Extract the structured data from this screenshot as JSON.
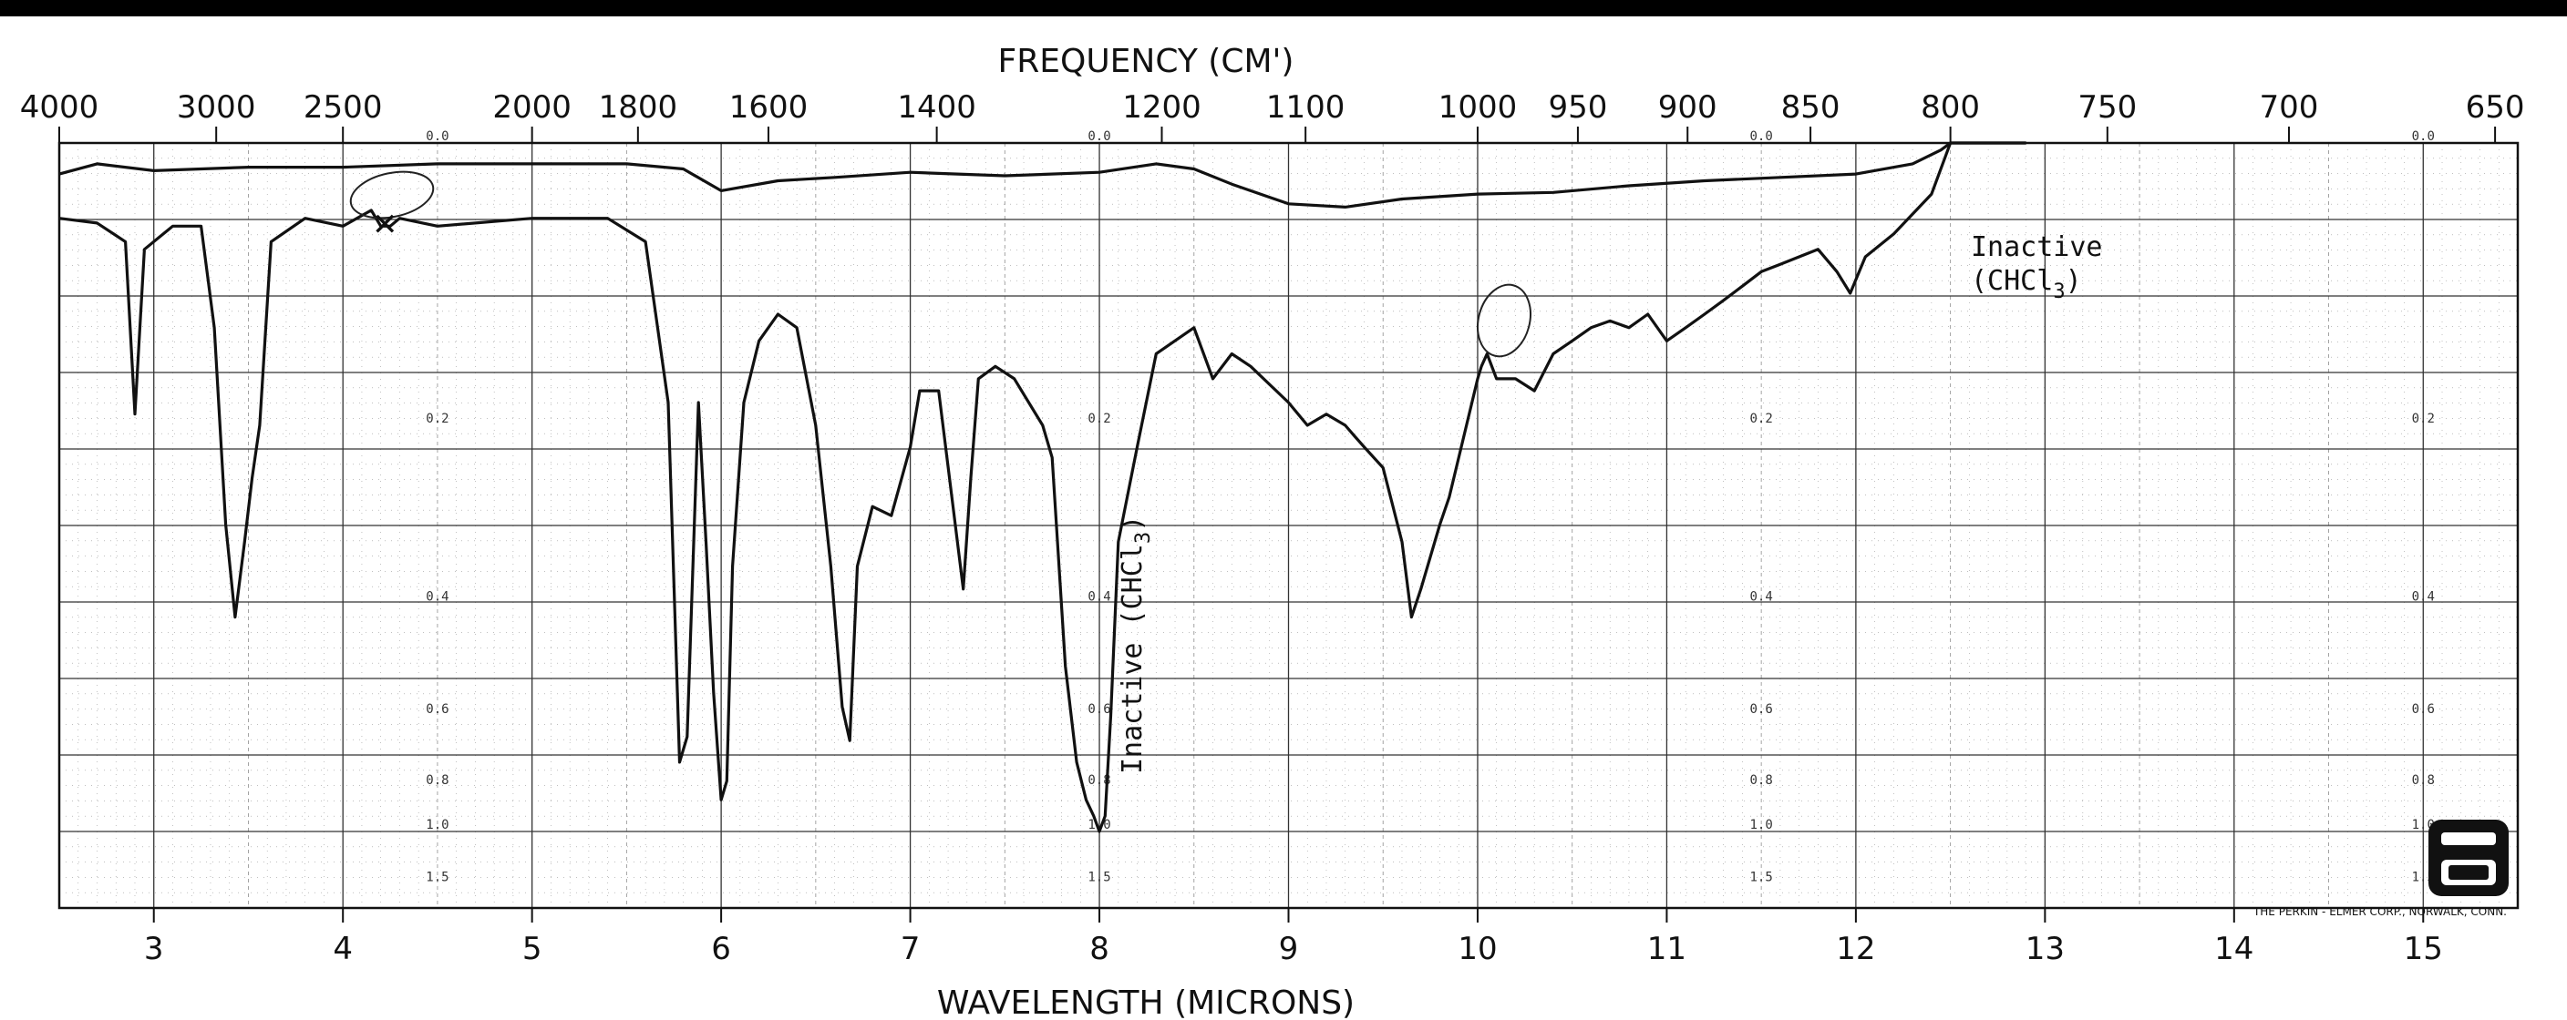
{
  "colors": {
    "ink": "#111111",
    "grid_major": "#333333",
    "grid_minor": "#9a9a9a",
    "paper": "#ffffff"
  },
  "chart_data": {
    "type": "line",
    "title": "",
    "x_top_label": "FREQUENCY (CM')",
    "xlabel": "WAVELENGTH (MICRONS)",
    "xlim": [
      2.5,
      15.5
    ],
    "x_ticks": [
      "3",
      "4",
      "5",
      "6",
      "7",
      "8",
      "9",
      "10",
      "11",
      "12",
      "13",
      "14",
      "15"
    ],
    "freq_ticks": [
      {
        "label": "4000",
        "wavelength": 2.5
      },
      {
        "label": "3000",
        "wavelength": 3.33
      },
      {
        "label": "2500",
        "wavelength": 4.0
      },
      {
        "label": "2000",
        "wavelength": 5.0
      },
      {
        "label": "1800",
        "wavelength": 5.56
      },
      {
        "label": "1600",
        "wavelength": 6.25
      },
      {
        "label": "1400",
        "wavelength": 7.14
      },
      {
        "label": "1200",
        "wavelength": 8.33
      },
      {
        "label": "1100",
        "wavelength": 9.09
      },
      {
        "label": "1000",
        "wavelength": 10.0
      },
      {
        "label": "950",
        "wavelength": 10.53
      },
      {
        "label": "900",
        "wavelength": 11.11
      },
      {
        "label": "850",
        "wavelength": 11.76
      },
      {
        "label": "800",
        "wavelength": 12.5
      },
      {
        "label": "750",
        "wavelength": 13.33
      },
      {
        "label": "700",
        "wavelength": 14.29
      },
      {
        "label": "650",
        "wavelength": 15.38
      }
    ],
    "absorbance_labels": [
      "0.0",
      "0.2",
      "0.4",
      "0.6",
      "0.8",
      "1.0",
      "1.5"
    ],
    "absorbance_label_columns": [
      4.5,
      8.0,
      11.5,
      15.0
    ],
    "grid": true,
    "series": [
      {
        "x": [
          2.5,
          2.7,
          2.85,
          2.9,
          2.95,
          3.1,
          3.25,
          3.32,
          3.38,
          3.43,
          3.48,
          3.52,
          3.56,
          3.62,
          3.8,
          4.0,
          4.15,
          4.2,
          4.25,
          4.3,
          4.5,
          5.0,
          5.4,
          5.6,
          5.72,
          5.78,
          5.82,
          5.88,
          5.92,
          5.96,
          6.0,
          6.03,
          6.06,
          6.12,
          6.2,
          6.3,
          6.4,
          6.5,
          6.58,
          6.64,
          6.68,
          6.72,
          6.8,
          6.9,
          7.0,
          7.05,
          7.15,
          7.22,
          7.28,
          7.32,
          7.36,
          7.45,
          7.55,
          7.7,
          7.75,
          7.82,
          7.88,
          7.93,
          7.97,
          8.0,
          8.03,
          8.06,
          8.1,
          8.2,
          8.3,
          8.5,
          8.6,
          8.7,
          8.8,
          9.0,
          9.1,
          9.2,
          9.3,
          9.35,
          9.4,
          9.5,
          9.6,
          9.65,
          9.7,
          9.8,
          9.85,
          10.0,
          10.02,
          10.05,
          10.1,
          10.2,
          10.3,
          10.4,
          10.5,
          10.6,
          10.7,
          10.8,
          10.9,
          11.0,
          11.1,
          11.2,
          11.3,
          11.4,
          11.5,
          11.6,
          11.7,
          11.8,
          11.9,
          11.97,
          12.05,
          12.2,
          12.4,
          12.5,
          12.9
        ],
        "y": [
          0.045,
          0.048,
          0.06,
          0.19,
          0.065,
          0.05,
          0.05,
          0.12,
          0.3,
          0.42,
          0.32,
          0.25,
          0.2,
          0.06,
          0.045,
          0.05,
          0.04,
          0.05,
          0.05,
          0.045,
          0.05,
          0.045,
          0.045,
          0.06,
          0.18,
          0.72,
          0.65,
          0.18,
          0.32,
          0.55,
          0.85,
          0.78,
          0.35,
          0.18,
          0.13,
          0.11,
          0.12,
          0.2,
          0.35,
          0.58,
          0.66,
          0.35,
          0.28,
          0.29,
          0.22,
          0.17,
          0.17,
          0.27,
          0.38,
          0.25,
          0.16,
          0.15,
          0.16,
          0.2,
          0.23,
          0.5,
          0.72,
          0.85,
          0.92,
          1.0,
          0.92,
          0.6,
          0.32,
          0.22,
          0.14,
          0.12,
          0.16,
          0.14,
          0.15,
          0.18,
          0.2,
          0.19,
          0.2,
          0.21,
          0.22,
          0.24,
          0.32,
          0.42,
          0.38,
          0.3,
          0.27,
          0.16,
          0.15,
          0.14,
          0.16,
          0.16,
          0.17,
          0.14,
          0.13,
          0.12,
          0.115,
          0.12,
          0.11,
          0.13,
          0.12,
          0.11,
          0.1,
          0.09,
          0.08,
          0.075,
          0.07,
          0.065,
          0.08,
          0.095,
          0.07,
          0.055,
          0.03,
          0.0,
          0.0
        ]
      },
      {
        "x": [
          2.5,
          2.7,
          3.0,
          3.5,
          4.0,
          4.5,
          5.0,
          5.5,
          5.8,
          6.0,
          6.3,
          6.6,
          7.0,
          7.5,
          8.0,
          8.3,
          8.5,
          8.7,
          9.0,
          9.3,
          9.6,
          10.0,
          10.4,
          10.8,
          11.2,
          11.6,
          12.0,
          12.3,
          12.45,
          12.5,
          12.9
        ],
        "y": [
          0.018,
          0.012,
          0.016,
          0.014,
          0.014,
          0.012,
          0.012,
          0.012,
          0.015,
          0.028,
          0.022,
          0.02,
          0.017,
          0.019,
          0.017,
          0.012,
          0.015,
          0.024,
          0.036,
          0.038,
          0.033,
          0.03,
          0.029,
          0.025,
          0.022,
          0.02,
          0.018,
          0.012,
          0.004,
          0.0,
          0.0
        ]
      }
    ]
  },
  "annotations": {
    "inactive_right_line1": "Inactive",
    "inactive_right_line2": "(CHCl",
    "inactive_right_sub": "3",
    "inactive_right_close": ")",
    "inactive_vertical": "Inactive (CHCl",
    "inactive_vertical_sub": "3",
    "inactive_vertical_close": ")",
    "footer": "THE PERKIN - ELMER CORP., NORWALK, CONN."
  }
}
